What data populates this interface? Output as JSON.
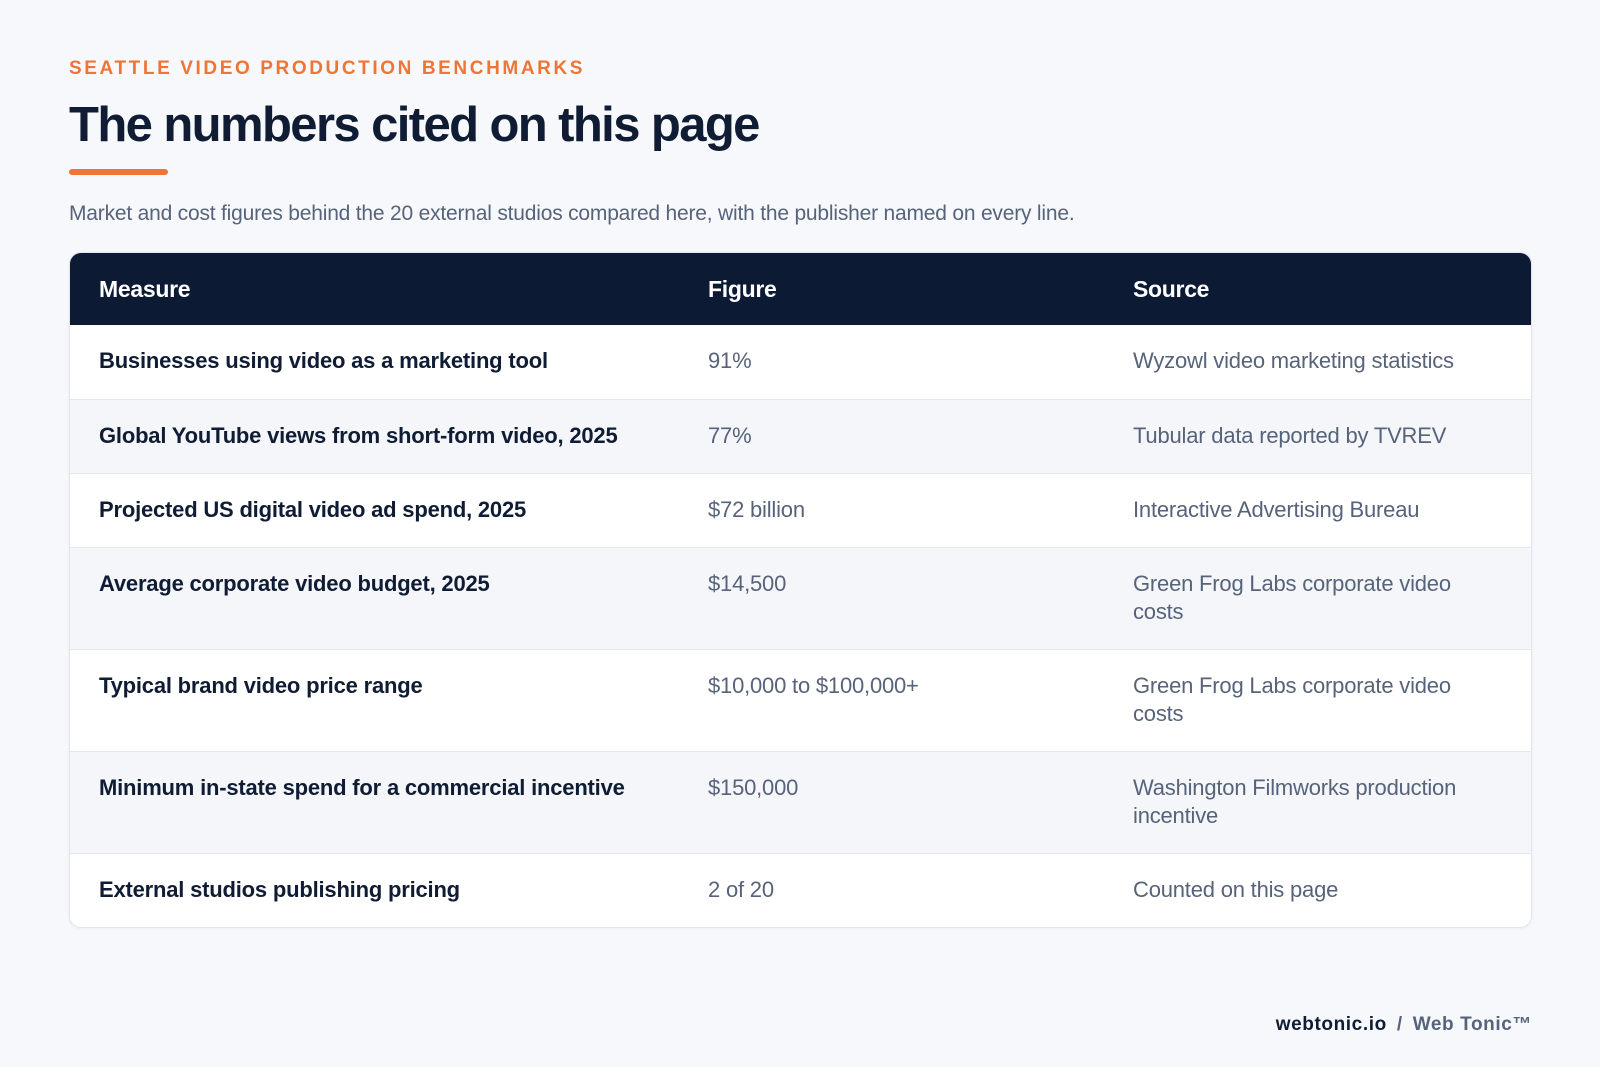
{
  "header": {
    "eyebrow": "SEATTLE VIDEO PRODUCTION BENCHMARKS",
    "title": "The numbers cited on this page",
    "subtitle": "Market and cost figures behind the 20 external studios compared here, with the publisher named on every line."
  },
  "table": {
    "columns": [
      "Measure",
      "Figure",
      "Source"
    ],
    "rows": [
      {
        "measure": "Businesses using video as a marketing tool",
        "figure": "91%",
        "source": "Wyzowl video marketing statistics"
      },
      {
        "measure": "Global YouTube views from short-form video, 2025",
        "figure": "77%",
        "source": "Tubular data reported by TVREV"
      },
      {
        "measure": "Projected US digital video ad spend, 2025",
        "figure": "$72 billion",
        "source": "Interactive Advertising Bureau"
      },
      {
        "measure": "Average corporate video budget, 2025",
        "figure": "$14,500",
        "source": "Green Frog Labs corporate video costs"
      },
      {
        "measure": "Typical brand video price range",
        "figure": "$10,000 to $100,000+",
        "source": "Green Frog Labs corporate video costs"
      },
      {
        "measure": "Minimum in-state spend for a commercial incentive",
        "figure": "$150,000",
        "source": "Washington Filmworks production incentive"
      },
      {
        "measure": "External studios publishing pricing",
        "figure": "2 of 20",
        "source": "Counted on this page"
      }
    ]
  },
  "footer": {
    "domain": "webtonic.io",
    "separator": "/",
    "brand": "Web Tonic™"
  },
  "colors": {
    "accent": "#ee7536",
    "header_bg": "#0c1a33",
    "text_dark": "#0f1c33",
    "text_muted": "#57637a",
    "page_bg": "#f6f8fb"
  }
}
